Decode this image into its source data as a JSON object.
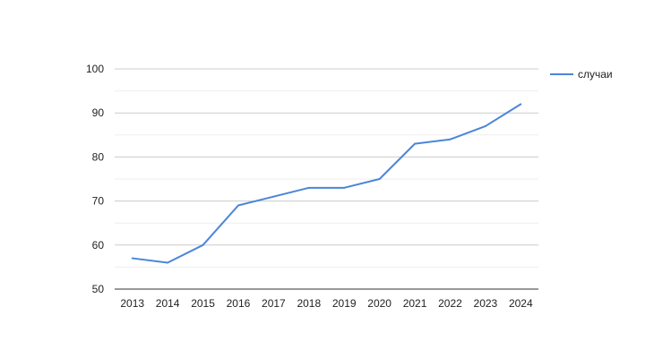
{
  "chart_data": {
    "type": "line",
    "categories": [
      "2013",
      "2014",
      "2015",
      "2016",
      "2017",
      "2018",
      "2019",
      "2020",
      "2021",
      "2022",
      "2023",
      "2024"
    ],
    "series": [
      {
        "name": "случаи",
        "color": "#4a86d8",
        "values": [
          57,
          56,
          60,
          69,
          71,
          73,
          73,
          75,
          83,
          84,
          87,
          92
        ]
      }
    ],
    "ylim": [
      50,
      100
    ],
    "yticks": [
      "50",
      "60",
      "70",
      "80",
      "90",
      "100"
    ],
    "grid": true,
    "minor_grid": true,
    "legend_position": "right",
    "title": "",
    "xlabel": "",
    "ylabel": ""
  }
}
